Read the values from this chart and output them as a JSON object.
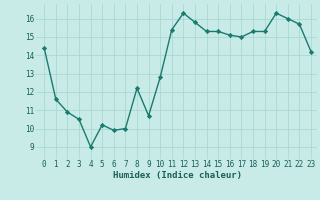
{
  "x": [
    0,
    1,
    2,
    3,
    4,
    5,
    6,
    7,
    8,
    9,
    10,
    11,
    12,
    13,
    14,
    15,
    16,
    17,
    18,
    19,
    20,
    21,
    22,
    23
  ],
  "y": [
    14.4,
    11.6,
    10.9,
    10.5,
    9.0,
    10.2,
    9.9,
    10.0,
    12.2,
    10.7,
    12.8,
    15.4,
    16.3,
    15.8,
    15.3,
    15.3,
    15.1,
    15.0,
    15.3,
    15.3,
    16.3,
    16.0,
    15.7,
    14.2
  ],
  "xlabel": "Humidex (Indice chaleur)",
  "xlim": [
    -0.5,
    23.5
  ],
  "ylim": [
    8.5,
    16.8
  ],
  "yticks": [
    9,
    10,
    11,
    12,
    13,
    14,
    15,
    16
  ],
  "xticks": [
    0,
    1,
    2,
    3,
    4,
    5,
    6,
    7,
    8,
    9,
    10,
    11,
    12,
    13,
    14,
    15,
    16,
    17,
    18,
    19,
    20,
    21,
    22,
    23
  ],
  "line_color": "#1a7a6e",
  "marker": "D",
  "marker_size": 2.2,
  "bg_color": "#c8ebe7",
  "grid_color": "#a8d8d2",
  "tick_label_color": "#1a5f5a",
  "axis_label_color": "#1a5f5a",
  "line_width": 1.0
}
